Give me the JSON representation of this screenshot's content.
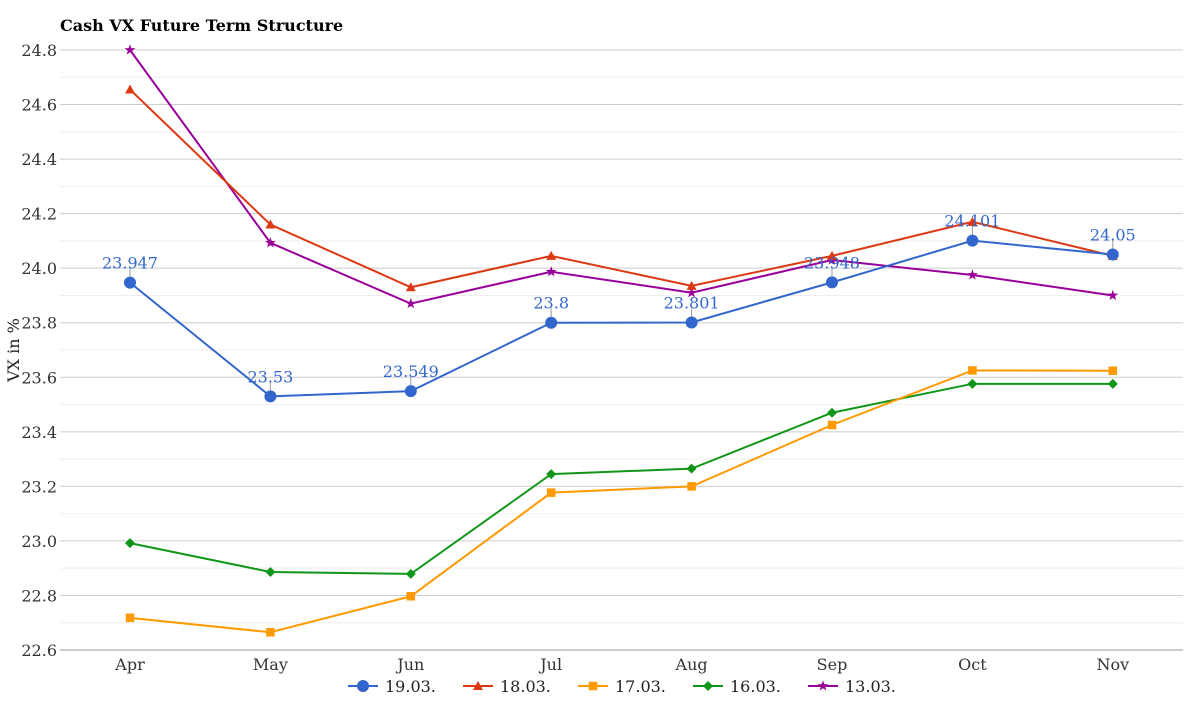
{
  "chart_data": {
    "type": "line",
    "title": "Cash VX Future Term Structure",
    "xlabel": "",
    "ylabel": "VX in %",
    "categories": [
      "Apr",
      "May",
      "Jun",
      "Jul",
      "Aug",
      "Sep",
      "Oct",
      "Nov"
    ],
    "ylim": [
      22.6,
      24.8
    ],
    "yticks": [
      "22.6",
      "22.8",
      "23.0",
      "23.2",
      "23.4",
      "23.6",
      "23.8",
      "24.0",
      "24.2",
      "24.4",
      "24.6",
      "24.8"
    ],
    "grid": true,
    "legend_position": "bottom",
    "series": [
      {
        "name": "19.03.",
        "color": "#3366cc",
        "marker": "circle",
        "values": [
          23.947,
          23.53,
          23.549,
          23.8,
          23.801,
          23.948,
          24.101,
          24.05
        ],
        "labels": [
          "23.947",
          "23.53",
          "23.549",
          "23.8",
          "23.801",
          "23.948",
          "24.101",
          "24.05"
        ]
      },
      {
        "name": "18.03.",
        "color": "#dc3912",
        "marker": "triangle",
        "values": [
          24.655,
          24.16,
          23.93,
          24.045,
          23.935,
          24.045,
          24.17,
          24.045
        ]
      },
      {
        "name": "17.03.",
        "color": "#ff9900",
        "marker": "square",
        "values": [
          22.718,
          22.665,
          22.797,
          23.177,
          23.2,
          23.425,
          23.625,
          23.624
        ]
      },
      {
        "name": "16.03.",
        "color": "#109618",
        "marker": "diamond",
        "values": [
          22.992,
          22.886,
          22.879,
          23.245,
          23.265,
          23.47,
          23.576,
          23.576
        ]
      },
      {
        "name": "13.03.",
        "color": "#990099",
        "marker": "star",
        "values": [
          24.8,
          24.093,
          23.87,
          23.987,
          23.91,
          24.03,
          23.975,
          23.9
        ]
      }
    ]
  }
}
